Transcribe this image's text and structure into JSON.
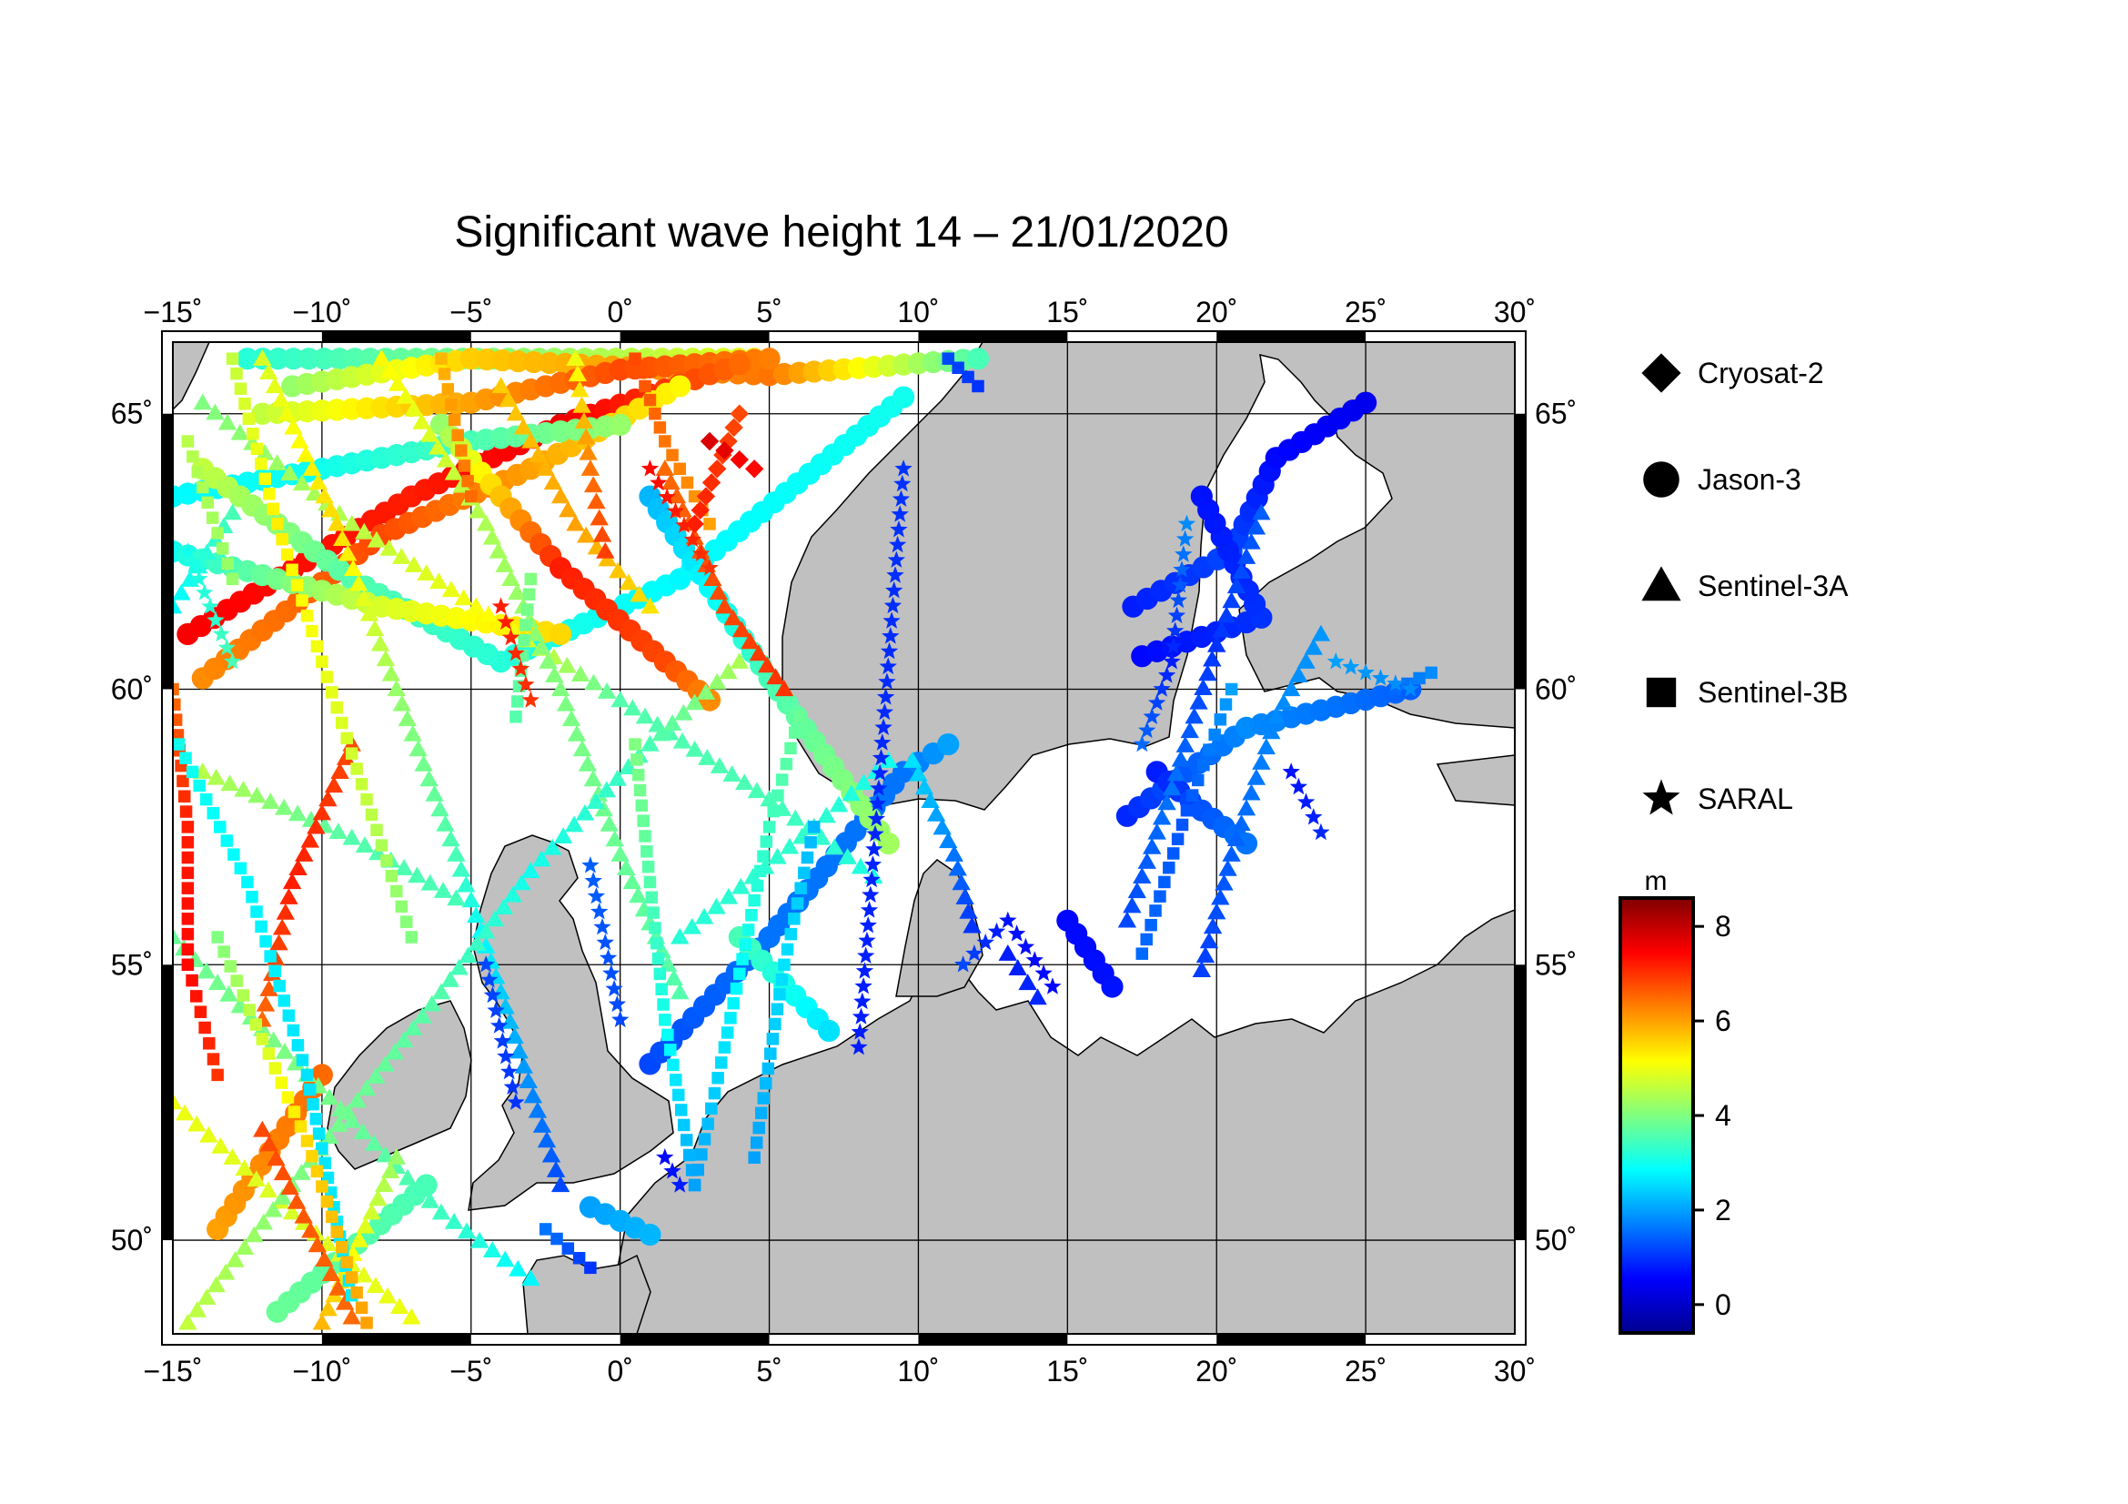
{
  "title": "Significant wave height 14 – 21/01/2020",
  "map": {
    "lon_range": [
      -15,
      30
    ],
    "lat_range": [
      48.3,
      66.3
    ],
    "lon_ticks": [
      -15,
      -10,
      -5,
      0,
      5,
      10,
      15,
      20,
      25,
      30
    ],
    "lon_tick_labels": [
      "−15˚",
      "−10˚",
      "−5˚",
      "0˚",
      "5˚",
      "10˚",
      "15˚",
      "20˚",
      "25˚",
      "30˚"
    ],
    "lat_ticks": [
      50,
      55,
      60,
      65
    ],
    "lat_tick_labels": [
      "50˚",
      "55˚",
      "60˚",
      "65˚"
    ],
    "land_color": "#c0c0c0",
    "sea_color": "#ffffff",
    "grid": true
  },
  "legend": {
    "satellites": [
      {
        "name": "Cryosat-2",
        "symbol": "diamond"
      },
      {
        "name": "Jason-3",
        "symbol": "circle"
      },
      {
        "name": "Sentinel-3A",
        "symbol": "triangle"
      },
      {
        "name": "Sentinel-3B",
        "symbol": "square"
      },
      {
        "name": "SARAL",
        "symbol": "star"
      }
    ]
  },
  "colorbar": {
    "unit": "m",
    "min": -0.6,
    "max": 8.6,
    "ticks": [
      0,
      2,
      4,
      6,
      8
    ],
    "tick_labels": [
      "0",
      "2",
      "4",
      "6",
      "8"
    ],
    "colormap": "jet"
  },
  "tracks": [
    {
      "sat": "Jason-3",
      "points": [
        [
          -12.5,
          66.0,
          3.2
        ],
        [
          5.0,
          66.0,
          5.0
        ]
      ]
    },
    {
      "sat": "Jason-3",
      "points": [
        [
          -11.0,
          65.5,
          4.2
        ],
        [
          -5.0,
          66.0,
          5.6
        ],
        [
          5.0,
          65.7,
          6.4
        ],
        [
          12.0,
          66.0,
          3.5
        ]
      ]
    },
    {
      "sat": "Jason-3",
      "points": [
        [
          -12.0,
          65.0,
          4.6
        ],
        [
          -5.0,
          65.2,
          6.0
        ],
        [
          0.0,
          65.8,
          6.8
        ],
        [
          5.0,
          66.0,
          6.3
        ]
      ]
    },
    {
      "sat": "Jason-3",
      "points": [
        [
          -14.5,
          61.0,
          7.5
        ],
        [
          -7.0,
          63.5,
          7.2
        ],
        [
          -2.0,
          64.8,
          7.6
        ],
        [
          4.0,
          65.9,
          6.5
        ]
      ]
    },
    {
      "sat": "Jason-3",
      "points": [
        [
          -14.0,
          60.2,
          6.2
        ],
        [
          -8.0,
          62.8,
          6.8
        ],
        [
          -3.0,
          64.0,
          6.0
        ],
        [
          2.0,
          65.5,
          5.2
        ]
      ]
    },
    {
      "sat": "Jason-3",
      "points": [
        [
          -15.0,
          63.5,
          2.8
        ],
        [
          -10.0,
          64.0,
          3.0
        ],
        [
          -5.0,
          64.5,
          3.5
        ],
        [
          0.0,
          64.8,
          4.2
        ]
      ]
    },
    {
      "sat": "Jason-3",
      "points": [
        [
          -14.0,
          64.0,
          4.6
        ],
        [
          -9.0,
          62.0,
          3.6
        ],
        [
          -4.0,
          60.5,
          3.2
        ],
        [
          2.0,
          62.0,
          2.8
        ],
        [
          9.5,
          65.3,
          3.0
        ]
      ]
    },
    {
      "sat": "Jason-3",
      "points": [
        [
          -15.0,
          62.5,
          3.0
        ],
        [
          -8.0,
          61.5,
          4.8
        ],
        [
          -2.0,
          61.0,
          5.5
        ]
      ]
    },
    {
      "sat": "Jason-3",
      "points": [
        [
          -6.0,
          64.8,
          4.2
        ],
        [
          -2.0,
          62.2,
          7.2
        ],
        [
          1.5,
          60.5,
          6.8
        ],
        [
          3.0,
          59.8,
          6.2
        ]
      ]
    },
    {
      "sat": "Jason-3",
      "points": [
        [
          1.0,
          53.2,
          1.2
        ],
        [
          5.0,
          55.5,
          1.6
        ],
        [
          9.5,
          58.5,
          1.6
        ],
        [
          11.0,
          59.0,
          2.0
        ]
      ]
    },
    {
      "sat": "Jason-3",
      "points": [
        [
          1.0,
          63.5,
          2.2
        ],
        [
          5.0,
          60.2,
          3.5
        ],
        [
          9.0,
          57.2,
          4.3
        ]
      ]
    },
    {
      "sat": "Jason-3",
      "points": [
        [
          4.0,
          55.5,
          3.5
        ],
        [
          7.0,
          53.8,
          2.6
        ]
      ]
    },
    {
      "sat": "Jason-3",
      "points": [
        [
          -13.5,
          50.2,
          6.0
        ],
        [
          -10.0,
          53.0,
          6.5
        ]
      ]
    },
    {
      "sat": "Jason-3",
      "points": [
        [
          -11.5,
          48.7,
          3.8
        ],
        [
          -6.5,
          51.0,
          3.5
        ]
      ]
    },
    {
      "sat": "Jason-3",
      "points": [
        [
          -1.0,
          50.6,
          2.0
        ],
        [
          1.0,
          50.1,
          2.2
        ]
      ]
    },
    {
      "sat": "Jason-3",
      "points": [
        [
          17.0,
          57.7,
          0.9
        ],
        [
          21.0,
          59.3,
          1.8
        ],
        [
          26.5,
          60.0,
          1.4
        ]
      ]
    },
    {
      "sat": "Jason-3",
      "points": [
        [
          17.2,
          61.5,
          0.8
        ],
        [
          20.5,
          62.5,
          1.2
        ],
        [
          22.0,
          64.2,
          0.6
        ],
        [
          25.0,
          65.2,
          0.4
        ]
      ]
    },
    {
      "sat": "Jason-3",
      "points": [
        [
          17.5,
          60.6,
          0.6
        ],
        [
          21.5,
          61.3,
          1.0
        ],
        [
          19.5,
          63.5,
          0.7
        ]
      ]
    },
    {
      "sat": "Jason-3",
      "points": [
        [
          18.0,
          58.5,
          0.8
        ],
        [
          19.5,
          57.8,
          1.3
        ],
        [
          21.0,
          57.2,
          1.6
        ]
      ]
    },
    {
      "sat": "Jason-3",
      "points": [
        [
          15.0,
          55.8,
          0.6
        ],
        [
          16.5,
          54.6,
          0.7
        ]
      ]
    },
    {
      "sat": "Sentinel-3A",
      "points": [
        [
          -14.0,
          65.2,
          4.0
        ],
        [
          -9.0,
          63.0,
          4.5
        ],
        [
          -4.0,
          61.2,
          5.2
        ],
        [
          0.0,
          59.8,
          3.6
        ],
        [
          5.0,
          58.0,
          3.5
        ],
        [
          8.5,
          56.6,
          3.1
        ]
      ]
    },
    {
      "sat": "Sentinel-3A",
      "points": [
        [
          -12.0,
          66.0,
          4.8
        ],
        [
          -9.5,
          63.0,
          5.5
        ],
        [
          -7.5,
          60.0,
          4.2
        ],
        [
          -5.5,
          57.0,
          3.5
        ],
        [
          -4.0,
          54.5,
          2.4
        ],
        [
          -2.0,
          51.0,
          1.2
        ]
      ]
    },
    {
      "sat": "Sentinel-3A",
      "points": [
        [
          -8.0,
          66.0,
          5.2
        ],
        [
          -4.5,
          63.0,
          4.4
        ],
        [
          -2.0,
          60.0,
          4.0
        ],
        [
          0.0,
          57.0,
          3.8
        ],
        [
          2.0,
          54.5,
          3.6
        ]
      ]
    },
    {
      "sat": "Sentinel-3A",
      "points": [
        [
          -15.0,
          55.5,
          3.8
        ],
        [
          -10.5,
          53.0,
          4.0
        ],
        [
          -6.0,
          50.5,
          3.4
        ],
        [
          -3.0,
          49.3,
          2.8
        ]
      ]
    },
    {
      "sat": "Sentinel-3A",
      "points": [
        [
          -15.0,
          52.5,
          5.0
        ],
        [
          -11.0,
          50.5,
          4.8
        ],
        [
          -7.0,
          48.6,
          5.0
        ]
      ]
    },
    {
      "sat": "Sentinel-3A",
      "points": [
        [
          -14.5,
          48.5,
          4.6
        ],
        [
          -11.0,
          51.0,
          4.0
        ],
        [
          -6.0,
          54.5,
          3.6
        ],
        [
          -3.0,
          56.7,
          3.0
        ],
        [
          1.0,
          59.0,
          3.5
        ],
        [
          4.0,
          60.5,
          4.4
        ]
      ]
    },
    {
      "sat": "Sentinel-3A",
      "points": [
        [
          -14.0,
          58.5,
          4.5
        ],
        [
          -9.0,
          57.3,
          3.6
        ],
        [
          -5.5,
          56.2,
          3.5
        ]
      ]
    },
    {
      "sat": "Sentinel-3A",
      "points": [
        [
          1.5,
          64.0,
          6.5
        ],
        [
          3.5,
          61.5,
          6.8
        ],
        [
          5.5,
          60.0,
          7.0
        ]
      ]
    },
    {
      "sat": "Sentinel-3A",
      "points": [
        [
          -4.0,
          65.5,
          5.6
        ],
        [
          -1.5,
          63.0,
          6.0
        ],
        [
          1.0,
          61.5,
          5.4
        ]
      ]
    },
    {
      "sat": "Sentinel-3A",
      "points": [
        [
          -7.5,
          51.5,
          4.2
        ],
        [
          -10.0,
          48.5,
          5.8
        ]
      ]
    },
    {
      "sat": "Sentinel-3A",
      "points": [
        [
          -12.0,
          52.0,
          6.8
        ],
        [
          -9.0,
          48.6,
          6.5
        ]
      ]
    },
    {
      "sat": "Sentinel-3A",
      "points": [
        [
          -9.0,
          59.0,
          6.8
        ],
        [
          -11.0,
          56.5,
          7.2
        ],
        [
          -12.0,
          54.0,
          6.5
        ]
      ]
    },
    {
      "sat": "Sentinel-3A",
      "points": [
        [
          2.0,
          55.5,
          3.2
        ],
        [
          6.5,
          57.5,
          3.3
        ],
        [
          9.0,
          58.7,
          3.0
        ]
      ]
    },
    {
      "sat": "Sentinel-3A",
      "points": [
        [
          9.8,
          58.7,
          2.6
        ],
        [
          11.2,
          57.0,
          1.6
        ],
        [
          11.8,
          55.7,
          1.0
        ]
      ]
    },
    {
      "sat": "Sentinel-3A",
      "points": [
        [
          13.0,
          55.2,
          0.8
        ],
        [
          14.0,
          54.4,
          0.9
        ]
      ]
    },
    {
      "sat": "Sentinel-3A",
      "points": [
        [
          21.5,
          63.2,
          1.4
        ],
        [
          20.0,
          60.8,
          1.0
        ],
        [
          18.5,
          58.2,
          1.6
        ],
        [
          17.0,
          55.8,
          1.2
        ]
      ]
    },
    {
      "sat": "Sentinel-3A",
      "points": [
        [
          19.5,
          54.9,
          1.1
        ],
        [
          20.5,
          57.0,
          1.4
        ],
        [
          22.0,
          59.5,
          1.8
        ],
        [
          23.5,
          61.0,
          1.9
        ]
      ]
    },
    {
      "sat": "Sentinel-3A",
      "points": [
        [
          -15.0,
          61.5,
          2.8
        ],
        [
          -13.0,
          63.2,
          3.5
        ]
      ]
    },
    {
      "sat": "Sentinel-3A",
      "points": [
        [
          -1.5,
          66.0,
          5.0
        ],
        [
          -1.0,
          64.0,
          6.4
        ],
        [
          -0.5,
          62.5,
          6.9
        ]
      ]
    },
    {
      "sat": "Sentinel-3B",
      "points": [
        [
          -15.0,
          60.0,
          6.5
        ],
        [
          -14.5,
          57.5,
          7.2
        ],
        [
          -14.5,
          55.0,
          7.4
        ],
        [
          -13.5,
          53.0,
          7.0
        ]
      ]
    },
    {
      "sat": "Sentinel-3B",
      "points": [
        [
          -13.0,
          66.0,
          4.6
        ],
        [
          -11.5,
          63.0,
          5.3
        ],
        [
          -10.0,
          60.5,
          5.0
        ],
        [
          -8.5,
          58.0,
          4.6
        ],
        [
          -7.0,
          55.5,
          4.0
        ]
      ]
    },
    {
      "sat": "Sentinel-3B",
      "points": [
        [
          -14.8,
          59.0,
          3.0
        ],
        [
          -12.5,
          56.5,
          2.8
        ],
        [
          -10.5,
          53.0,
          2.6
        ],
        [
          -9.0,
          49.0,
          2.7
        ]
      ]
    },
    {
      "sat": "Sentinel-3B",
      "points": [
        [
          -13.5,
          55.5,
          4.0
        ],
        [
          -10.5,
          51.8,
          5.5
        ],
        [
          -8.5,
          48.5,
          6.0
        ]
      ]
    },
    {
      "sat": "Sentinel-3B",
      "points": [
        [
          -3.0,
          62.0,
          4.0
        ],
        [
          -3.5,
          59.5,
          3.6
        ]
      ]
    },
    {
      "sat": "Sentinel-3B",
      "points": [
        [
          0.5,
          59.0,
          4.0
        ],
        [
          1.0,
          56.5,
          3.6
        ],
        [
          1.5,
          54.0,
          3.0
        ],
        [
          2.5,
          51.0,
          2.0
        ]
      ]
    },
    {
      "sat": "Sentinel-3B",
      "points": [
        [
          2.5,
          51.0,
          2.0
        ],
        [
          3.5,
          53.5,
          2.6
        ],
        [
          5.0,
          57.5,
          3.4
        ],
        [
          6.0,
          59.5,
          3.8
        ]
      ]
    },
    {
      "sat": "Sentinel-3B",
      "points": [
        [
          4.5,
          51.5,
          2.0
        ],
        [
          5.5,
          55.0,
          2.6
        ],
        [
          6.5,
          57.5,
          2.2
        ]
      ]
    },
    {
      "sat": "Sentinel-3B",
      "points": [
        [
          0.5,
          66.0,
          6.8
        ],
        [
          1.5,
          64.5,
          6.4
        ],
        [
          3.0,
          63.0,
          6.0
        ]
      ]
    },
    {
      "sat": "Sentinel-3B",
      "points": [
        [
          -6.0,
          66.0,
          5.8
        ],
        [
          -5.0,
          63.5,
          6.5
        ]
      ]
    },
    {
      "sat": "Sentinel-3B",
      "points": [
        [
          -14.5,
          64.5,
          4.5
        ],
        [
          -13.0,
          62.0,
          4.2
        ]
      ]
    },
    {
      "sat": "Sentinel-3B",
      "points": [
        [
          11.0,
          66.0,
          1.2
        ],
        [
          12.0,
          65.5,
          1.0
        ]
      ]
    },
    {
      "sat": "Sentinel-3B",
      "points": [
        [
          17.5,
          55.2,
          1.5
        ],
        [
          19.0,
          57.8,
          1.3
        ],
        [
          20.5,
          60.0,
          2.0
        ]
      ]
    },
    {
      "sat": "Sentinel-3B",
      "points": [
        [
          26.0,
          60.0,
          1.5
        ],
        [
          27.2,
          60.3,
          1.8
        ]
      ]
    },
    {
      "sat": "Sentinel-3B",
      "points": [
        [
          -1.0,
          49.5,
          1.0
        ],
        [
          -2.5,
          50.2,
          1.6
        ]
      ]
    },
    {
      "sat": "SARAL",
      "points": [
        [
          -14.5,
          62.5,
          3.0
        ],
        [
          -13.0,
          60.5,
          3.5
        ]
      ]
    },
    {
      "sat": "SARAL",
      "points": [
        [
          -4.5,
          55.0,
          1.2
        ],
        [
          -3.5,
          52.5,
          1.0
        ]
      ]
    },
    {
      "sat": "SARAL",
      "points": [
        [
          -1.0,
          56.8,
          1.4
        ],
        [
          0.0,
          54.0,
          1.2
        ]
      ]
    },
    {
      "sat": "SARAL",
      "points": [
        [
          -4.0,
          61.5,
          7.2
        ],
        [
          -3.0,
          59.8,
          7.0
        ]
      ]
    },
    {
      "sat": "SARAL",
      "points": [
        [
          1.0,
          64.0,
          7.4
        ],
        [
          3.0,
          62.2,
          7.0
        ]
      ]
    },
    {
      "sat": "SARAL",
      "points": [
        [
          1.5,
          51.5,
          0.6
        ],
        [
          2.0,
          51.0,
          0.8
        ]
      ]
    },
    {
      "sat": "SARAL",
      "points": [
        [
          8.0,
          53.5,
          0.8
        ],
        [
          9.5,
          64.0,
          1.0
        ]
      ]
    },
    {
      "sat": "SARAL",
      "points": [
        [
          11.5,
          55.0,
          1.2
        ],
        [
          13.0,
          55.8,
          0.7
        ],
        [
          14.5,
          54.6,
          0.6
        ]
      ]
    },
    {
      "sat": "SARAL",
      "points": [
        [
          19.0,
          63.0,
          1.8
        ],
        [
          18.5,
          60.5,
          0.8
        ],
        [
          17.5,
          59.0,
          1.5
        ]
      ]
    },
    {
      "sat": "SARAL",
      "points": [
        [
          22.5,
          58.5,
          0.7
        ],
        [
          23.5,
          57.4,
          0.9
        ]
      ]
    },
    {
      "sat": "SARAL",
      "points": [
        [
          24.0,
          60.5,
          2.0
        ],
        [
          26.5,
          60.0,
          1.8
        ]
      ]
    },
    {
      "sat": "Cryosat-2",
      "points": [
        [
          2.5,
          63.0,
          7.2
        ],
        [
          4.0,
          65.0,
          6.8
        ]
      ]
    },
    {
      "sat": "Cryosat-2",
      "points": [
        [
          3.0,
          64.5,
          7.8
        ],
        [
          4.5,
          64.0,
          7.4
        ]
      ]
    }
  ]
}
